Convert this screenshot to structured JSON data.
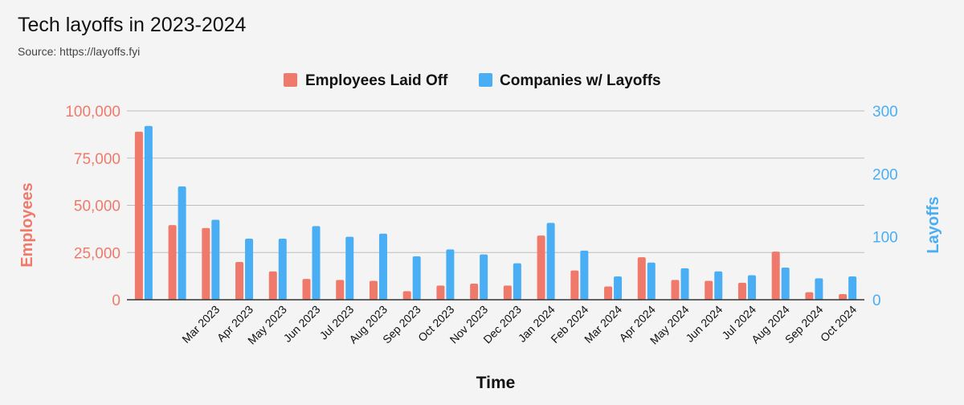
{
  "header": {
    "title": "Tech layoffs in 2023-2024",
    "subtitle": "Source: https://layoffs.fyi"
  },
  "chart_data": {
    "type": "bar",
    "title": "Tech layoffs in 2023-2024",
    "subtitle": "Source: https://layoffs.fyi",
    "xlabel": "Time",
    "ylabel_left": "Employees",
    "ylabel_right": "Layoffs",
    "ylim_left": [
      0,
      100000
    ],
    "ylim_right": [
      0,
      300
    ],
    "yticks_left": [
      "0",
      "25,000",
      "50,000",
      "75,000",
      "100,000"
    ],
    "yticks_right": [
      "0",
      "100",
      "200",
      "300"
    ],
    "legend_position": "top-center",
    "grid": true,
    "categories": [
      "",
      "",
      "Mar 2023",
      "Apr 2023",
      "May 2023",
      "Jun 2023",
      "Jul 2023",
      "Aug 2023",
      "Sep 2023",
      "Oct 2023",
      "Nov 2023",
      "Dec 2023",
      "Jan 2024",
      "Feb 2024",
      "Mar 2024",
      "Apr 2024",
      "May 2024",
      "Jun 2024",
      "Jul 2024",
      "Aug 2024",
      "Sep 2024",
      "Oct 2024"
    ],
    "series": [
      {
        "name": "Employees Laid Off",
        "axis": "left",
        "color": "#ef7a6b",
        "values": [
          89000,
          39500,
          38000,
          20000,
          15000,
          11000,
          10500,
          10000,
          4500,
          7500,
          8500,
          7500,
          34000,
          15500,
          7000,
          22500,
          10500,
          10000,
          9000,
          25500,
          4000,
          3000
        ]
      },
      {
        "name": "Companies w/ Layoffs",
        "axis": "right",
        "color": "#4aaef5",
        "values": [
          276,
          180,
          127,
          97,
          97,
          117,
          100,
          105,
          69,
          80,
          72,
          58,
          122,
          78,
          37,
          59,
          50,
          45,
          39,
          51,
          34,
          37
        ]
      }
    ]
  },
  "colors": {
    "left_axis": "#ef7a6b",
    "right_axis": "#4aaef5",
    "grid": "#bdbdbd",
    "background": "#f4f4f4"
  }
}
